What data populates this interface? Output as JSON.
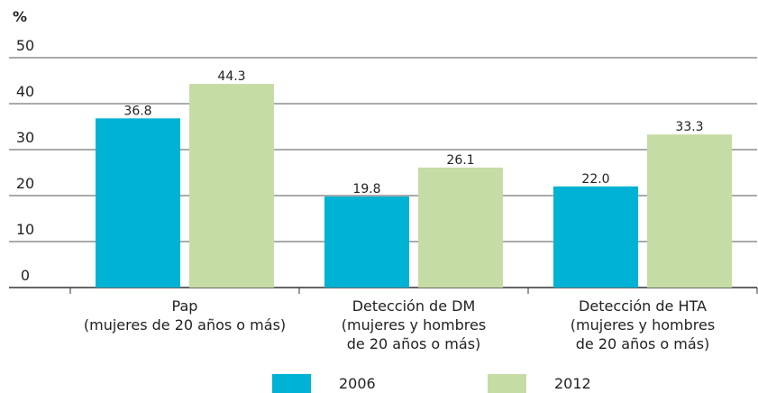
{
  "chart_data": {
    "type": "bar",
    "y_label": "%",
    "categories": [
      [
        "Pap",
        "(mujeres de 20 años o más)"
      ],
      [
        "Detección de DM",
        "(mujeres y hombres",
        "de 20 años o más)"
      ],
      [
        "Detección de HTA",
        "(mujeres y hombres",
        "de 20 años o más)"
      ]
    ],
    "series": [
      {
        "name": "2006",
        "color": "#00b2d3",
        "values": [
          36.8,
          19.8,
          22.0
        ],
        "value_labels": [
          "36.8",
          "19.8",
          "22.0"
        ]
      },
      {
        "name": "2012",
        "color": "#c6dca5",
        "values": [
          44.3,
          26.1,
          33.3
        ],
        "value_labels": [
          "44.3",
          "26.1",
          "33.3"
        ]
      }
    ],
    "ylim": [
      0,
      50
    ],
    "yticks": [
      0,
      10,
      20,
      30,
      40,
      50
    ],
    "grid": true,
    "legend": "bottom"
  }
}
